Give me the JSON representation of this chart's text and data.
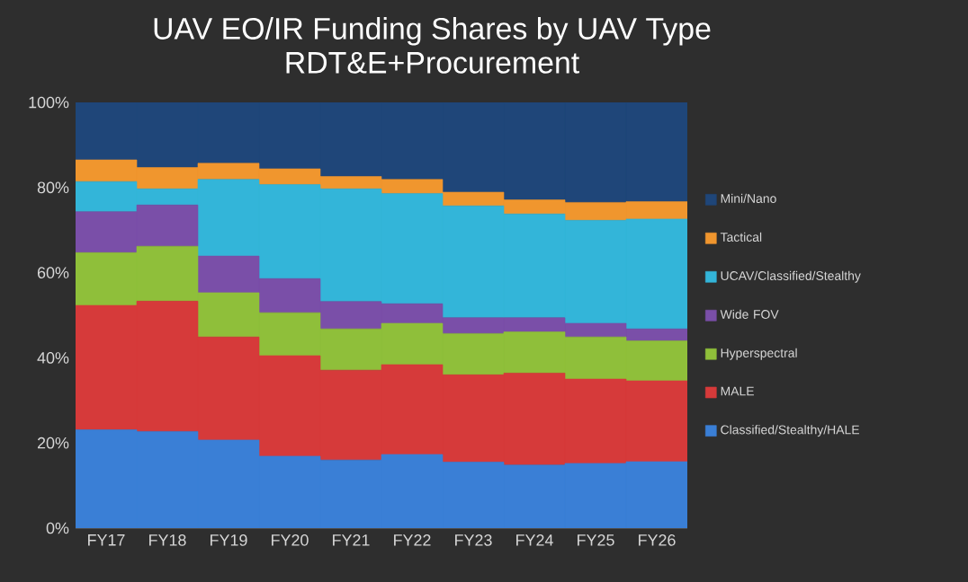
{
  "chart_data": {
    "type": "bar",
    "stacked": true,
    "title": "UAV EO/IR Funding Shares by UAV Type",
    "subtitle": "RDT&E+Procurement",
    "categories": [
      "FY17",
      "FY18",
      "FY19",
      "FY20",
      "FY21",
      "FY22",
      "FY23",
      "FY24",
      "FY25",
      "FY26"
    ],
    "ylim": [
      0,
      100
    ],
    "yticks": [
      {
        "value": 0,
        "label": "0%"
      },
      {
        "value": 20,
        "label": "20%"
      },
      {
        "value": 40,
        "label": "40%"
      },
      {
        "value": 60,
        "label": "60%"
      },
      {
        "value": 80,
        "label": "80%"
      },
      {
        "value": 100,
        "label": "100%"
      }
    ],
    "legend": "right",
    "series": [
      {
        "name": "Classified/Stealthy/HALE",
        "color": "#3a7fd6",
        "values": [
          23.1,
          22.7,
          20.7,
          16.9,
          16.0,
          17.3,
          15.5,
          14.8,
          15.2,
          15.6
        ]
      },
      {
        "name": "MALE",
        "color": "#d63a3a",
        "values": [
          29.2,
          30.6,
          24.2,
          23.6,
          21.1,
          21.1,
          20.5,
          21.6,
          19.8,
          19.0
        ]
      },
      {
        "name": "Hyperspectral",
        "color": "#8fbf3a",
        "values": [
          12.4,
          12.9,
          10.4,
          10.1,
          9.7,
          9.7,
          9.7,
          9.7,
          9.9,
          9.4
        ]
      },
      {
        "name": "Wide FOV",
        "color": "#7a4fa8",
        "values": [
          9.6,
          9.7,
          8.6,
          8.0,
          6.4,
          4.6,
          3.7,
          3.3,
          3.2,
          2.8
        ]
      },
      {
        "name": "UCAV/Classified/Stealthy",
        "color": "#33b5d9",
        "values": [
          7.1,
          3.8,
          18.0,
          22.1,
          26.5,
          25.9,
          26.3,
          24.4,
          24.2,
          25.8
        ]
      },
      {
        "name": "Tactical",
        "color": "#f0962e",
        "values": [
          5.1,
          5.0,
          3.8,
          3.7,
          2.9,
          3.3,
          3.2,
          3.3,
          4.2,
          4.1
        ]
      },
      {
        "name": "Mini/Nano",
        "color": "#1f4679",
        "values": [
          13.5,
          15.3,
          14.3,
          15.6,
          17.4,
          18.1,
          21.1,
          22.9,
          23.5,
          23.3
        ]
      }
    ]
  }
}
